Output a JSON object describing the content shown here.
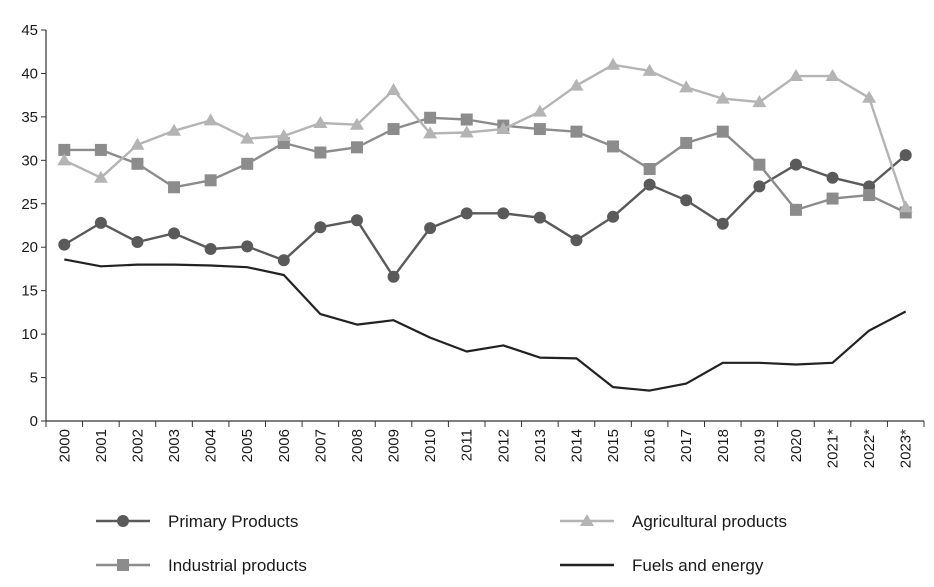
{
  "chart_data": {
    "type": "line",
    "title": "",
    "xlabel": "",
    "ylabel": "",
    "ylim": [
      0,
      45
    ],
    "yticks": [
      0,
      5,
      10,
      15,
      20,
      25,
      30,
      35,
      40,
      45
    ],
    "grid": false,
    "legend_position": "bottom",
    "categories": [
      "2000",
      "2001",
      "2002",
      "2003",
      "2004",
      "2005",
      "2006",
      "2007",
      "2008",
      "2009",
      "2010",
      "2011",
      "2012",
      "2013",
      "2014",
      "2015",
      "2016",
      "2017",
      "2018",
      "2019",
      "2020",
      "2021*",
      "2022*",
      "2023*"
    ],
    "series": [
      {
        "name": "Primary Products",
        "marker": "circle",
        "color": "#5a5a5a",
        "values": [
          20.3,
          22.8,
          20.6,
          21.6,
          19.8,
          20.1,
          18.5,
          22.3,
          23.1,
          16.6,
          22.2,
          23.9,
          23.9,
          23.4,
          20.8,
          23.5,
          27.2,
          25.4,
          22.7,
          27.0,
          29.5,
          28.0,
          27.0,
          30.6
        ]
      },
      {
        "name": "Industrial products",
        "marker": "square",
        "color": "#8c8c8c",
        "values": [
          31.2,
          31.2,
          29.6,
          26.9,
          27.7,
          29.6,
          32.0,
          30.9,
          31.5,
          33.6,
          34.9,
          34.7,
          34.0,
          33.6,
          33.3,
          31.6,
          29.0,
          32.0,
          33.3,
          29.5,
          24.3,
          25.6,
          26.0,
          24.0
        ]
      },
      {
        "name": "Agricultural products",
        "marker": "triangle",
        "color": "#b4b4b4",
        "values": [
          30.0,
          28.0,
          31.8,
          33.4,
          34.6,
          32.5,
          32.8,
          34.3,
          34.1,
          38.1,
          33.1,
          33.2,
          33.6,
          35.6,
          38.6,
          41.0,
          40.3,
          38.4,
          37.1,
          36.7,
          39.7,
          39.7,
          37.2,
          24.6
        ]
      },
      {
        "name": "Fuels and energy",
        "marker": "none",
        "color": "#222222",
        "values": [
          18.6,
          17.8,
          18.0,
          18.0,
          17.9,
          17.7,
          16.8,
          12.3,
          11.1,
          11.6,
          9.6,
          8.0,
          8.7,
          7.3,
          7.2,
          3.9,
          3.5,
          4.3,
          6.7,
          6.7,
          6.5,
          6.7,
          10.4,
          12.6
        ]
      }
    ]
  }
}
